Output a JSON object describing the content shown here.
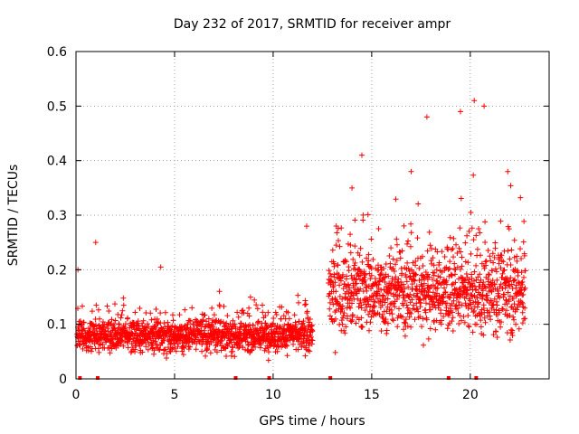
{
  "chart_data": {
    "type": "scatter",
    "title": "Day 232 of 2017, SRMTID for receiver ampr",
    "xlabel": "GPS time / hours",
    "ylabel": "SRMTID / TECUs",
    "xlim": [
      0,
      24
    ],
    "ylim": [
      0,
      0.6
    ],
    "x_ticks": [
      0,
      5,
      10,
      15,
      20
    ],
    "x_tick_labels": [
      "0",
      "5",
      "10",
      "15",
      "20"
    ],
    "y_ticks": [
      0,
      0.1,
      0.2,
      0.3,
      0.4,
      0.5,
      0.6
    ],
    "y_tick_labels": [
      "0",
      "0.1",
      "0.2",
      "0.3",
      "0.4",
      "0.5",
      "0.6"
    ],
    "grid": true,
    "marker": "plus",
    "color": "#ff0000",
    "series": [
      {
        "name": "SRMTID",
        "segments": [
          {
            "x0": 0.0,
            "x1": 12.0,
            "median": 0.08,
            "spread": 0.06
          },
          {
            "x0": 12.8,
            "x1": 22.8,
            "median": 0.16,
            "spread": 0.14
          }
        ],
        "notable_points": [
          [
            0.1,
            0.2
          ],
          [
            1.0,
            0.25
          ],
          [
            4.3,
            0.205
          ],
          [
            11.7,
            0.28
          ],
          [
            14.0,
            0.35
          ],
          [
            14.5,
            0.41
          ],
          [
            17.0,
            0.38
          ],
          [
            17.8,
            0.48
          ],
          [
            19.5,
            0.49
          ],
          [
            20.2,
            0.51
          ],
          [
            20.7,
            0.5
          ],
          [
            21.9,
            0.38
          ]
        ],
        "baseline_marks_x": [
          0.2,
          1.1,
          8.1,
          9.8,
          12.9,
          18.9,
          20.3
        ]
      }
    ]
  }
}
